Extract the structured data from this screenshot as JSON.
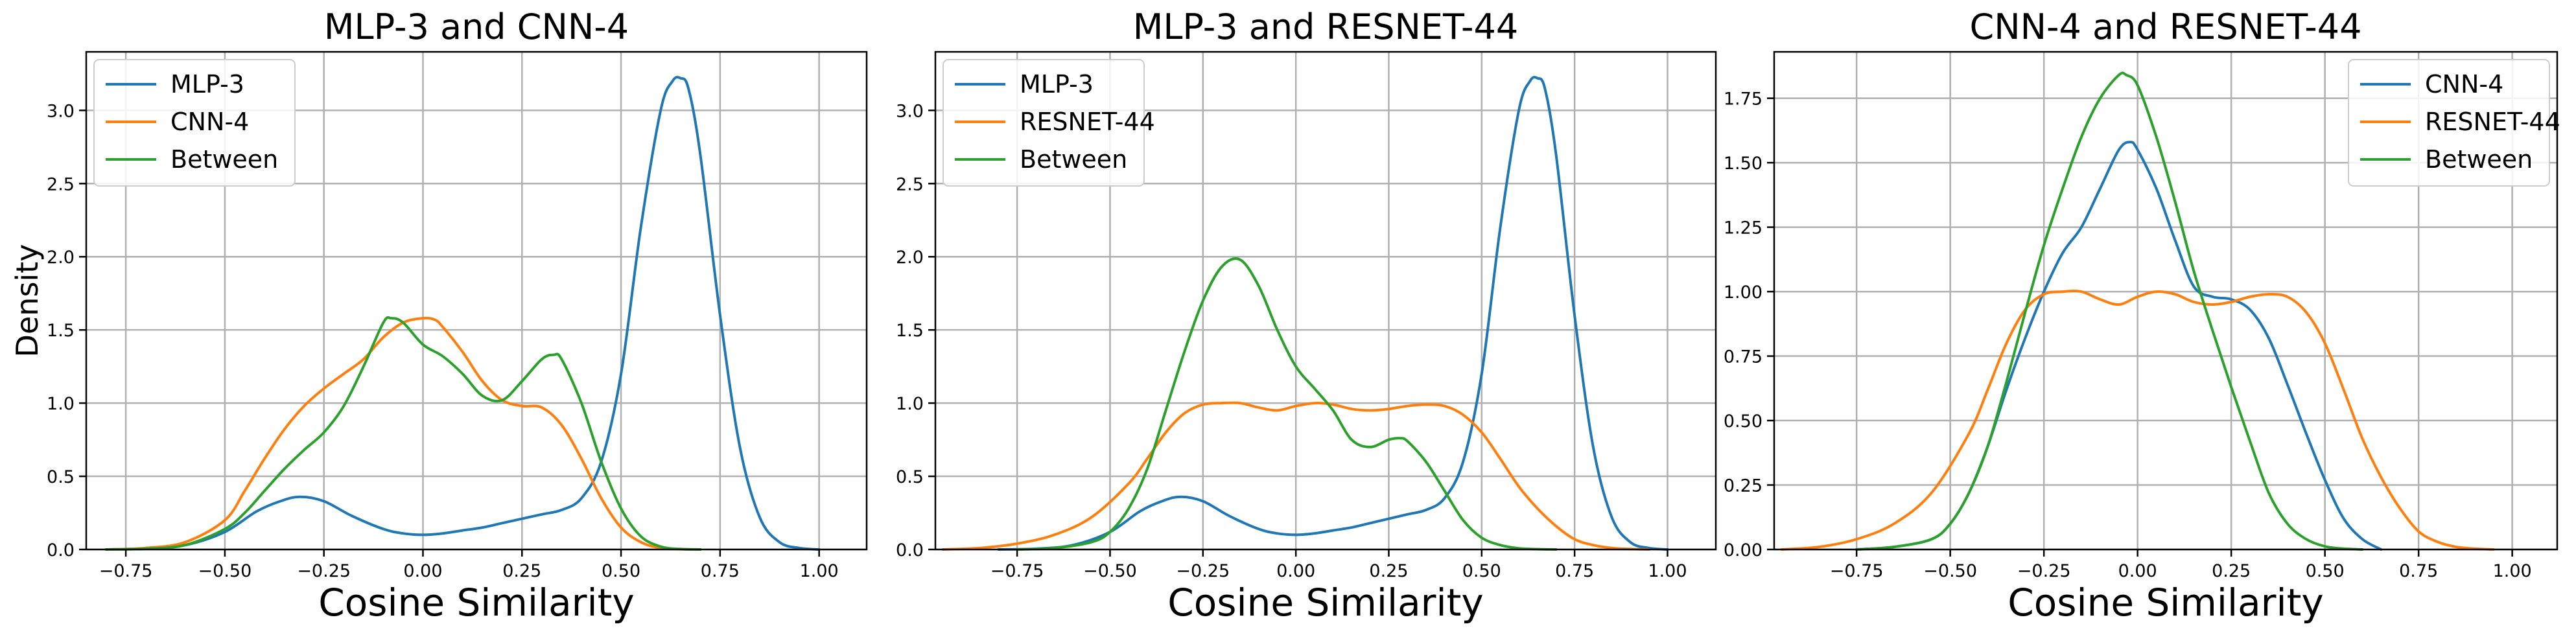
{
  "chart_data": [
    {
      "type": "line",
      "title": "MLP-3 and CNN-4",
      "xlabel": "Cosine Similarity",
      "ylabel": "Density",
      "xlim": [
        -0.85,
        1.12
      ],
      "ylim": [
        0,
        3.4
      ],
      "xticks": [
        -0.75,
        -0.5,
        -0.25,
        0.0,
        0.25,
        0.5,
        0.75,
        1.0
      ],
      "xtick_labels": [
        "−0.75",
        "−0.50",
        "−0.25",
        "0.00",
        "0.25",
        "0.50",
        "0.75",
        "1.00"
      ],
      "yticks": [
        0.0,
        0.5,
        1.0,
        1.5,
        2.0,
        2.5,
        3.0
      ],
      "ytick_labels": [
        "0.0",
        "0.5",
        "1.0",
        "1.5",
        "2.0",
        "2.5",
        "3.0"
      ],
      "grid": true,
      "legend_position": "top-left",
      "series": [
        {
          "name": "MLP-3",
          "color": "#1f77b4",
          "x": [
            -0.8,
            -0.7,
            -0.6,
            -0.5,
            -0.42,
            -0.36,
            -0.31,
            -0.25,
            -0.18,
            -0.1,
            -0.05,
            0.0,
            0.05,
            0.1,
            0.15,
            0.2,
            0.25,
            0.3,
            0.35,
            0.4,
            0.45,
            0.5,
            0.55,
            0.6,
            0.63,
            0.65,
            0.67,
            0.7,
            0.75,
            0.8,
            0.85,
            0.9,
            0.95,
            1.0
          ],
          "y": [
            0.0,
            0.005,
            0.03,
            0.12,
            0.26,
            0.33,
            0.36,
            0.33,
            0.23,
            0.14,
            0.11,
            0.1,
            0.11,
            0.13,
            0.15,
            0.18,
            0.21,
            0.24,
            0.27,
            0.35,
            0.6,
            1.2,
            2.2,
            3.0,
            3.2,
            3.22,
            3.15,
            2.7,
            1.6,
            0.7,
            0.22,
            0.05,
            0.01,
            0.0
          ]
        },
        {
          "name": "CNN-4",
          "color": "#ff7f0e",
          "x": [
            -0.8,
            -0.7,
            -0.6,
            -0.5,
            -0.45,
            -0.4,
            -0.35,
            -0.3,
            -0.25,
            -0.2,
            -0.15,
            -0.1,
            -0.05,
            0.0,
            0.03,
            0.05,
            0.1,
            0.15,
            0.2,
            0.25,
            0.3,
            0.35,
            0.4,
            0.45,
            0.5,
            0.55,
            0.6,
            0.65,
            0.7
          ],
          "y": [
            0.0,
            0.01,
            0.05,
            0.2,
            0.4,
            0.62,
            0.82,
            0.98,
            1.1,
            1.2,
            1.3,
            1.45,
            1.55,
            1.58,
            1.57,
            1.52,
            1.35,
            1.15,
            1.02,
            0.98,
            0.97,
            0.85,
            0.62,
            0.35,
            0.15,
            0.05,
            0.01,
            0.002,
            0.0
          ]
        },
        {
          "name": "Between",
          "color": "#2ca02c",
          "x": [
            -0.8,
            -0.7,
            -0.6,
            -0.5,
            -0.45,
            -0.4,
            -0.35,
            -0.3,
            -0.25,
            -0.2,
            -0.15,
            -0.1,
            -0.08,
            -0.05,
            0.0,
            0.05,
            0.1,
            0.15,
            0.2,
            0.25,
            0.3,
            0.33,
            0.35,
            0.4,
            0.45,
            0.5,
            0.55,
            0.6,
            0.65,
            0.7
          ],
          "y": [
            0.0,
            0.005,
            0.03,
            0.14,
            0.25,
            0.4,
            0.55,
            0.68,
            0.8,
            0.98,
            1.25,
            1.55,
            1.58,
            1.55,
            1.4,
            1.32,
            1.2,
            1.05,
            1.02,
            1.15,
            1.3,
            1.33,
            1.3,
            1.0,
            0.6,
            0.28,
            0.09,
            0.02,
            0.003,
            0.0
          ]
        }
      ]
    },
    {
      "type": "line",
      "title": "MLP-3 and RESNET-44",
      "xlabel": "Cosine Similarity",
      "ylabel": "",
      "xlim": [
        -0.97,
        1.13
      ],
      "ylim": [
        0,
        3.4
      ],
      "xticks": [
        -0.75,
        -0.5,
        -0.25,
        0.0,
        0.25,
        0.5,
        0.75,
        1.0
      ],
      "xtick_labels": [
        "−0.75",
        "−0.50",
        "−0.25",
        "0.00",
        "0.25",
        "0.50",
        "0.75",
        "1.00"
      ],
      "yticks": [
        0.0,
        0.5,
        1.0,
        1.5,
        2.0,
        2.5,
        3.0
      ],
      "ytick_labels": [
        "0.0",
        "0.5",
        "1.0",
        "1.5",
        "2.0",
        "2.5",
        "3.0"
      ],
      "grid": true,
      "legend_position": "top-left",
      "series": [
        {
          "name": "MLP-3",
          "color": "#1f77b4",
          "x": [
            -0.8,
            -0.7,
            -0.6,
            -0.5,
            -0.42,
            -0.36,
            -0.31,
            -0.25,
            -0.18,
            -0.1,
            -0.05,
            0.0,
            0.05,
            0.1,
            0.15,
            0.2,
            0.25,
            0.3,
            0.35,
            0.4,
            0.45,
            0.5,
            0.55,
            0.6,
            0.63,
            0.65,
            0.67,
            0.7,
            0.75,
            0.8,
            0.85,
            0.9,
            0.95,
            1.0
          ],
          "y": [
            0.0,
            0.005,
            0.03,
            0.12,
            0.26,
            0.33,
            0.36,
            0.33,
            0.23,
            0.14,
            0.11,
            0.1,
            0.11,
            0.13,
            0.15,
            0.18,
            0.21,
            0.24,
            0.27,
            0.35,
            0.6,
            1.2,
            2.2,
            3.0,
            3.2,
            3.22,
            3.15,
            2.7,
            1.6,
            0.7,
            0.22,
            0.05,
            0.01,
            0.0
          ]
        },
        {
          "name": "RESNET-44",
          "color": "#ff7f0e",
          "x": [
            -0.95,
            -0.85,
            -0.75,
            -0.65,
            -0.55,
            -0.45,
            -0.4,
            -0.35,
            -0.3,
            -0.25,
            -0.2,
            -0.15,
            -0.1,
            -0.05,
            0.0,
            0.05,
            0.1,
            0.15,
            0.2,
            0.25,
            0.3,
            0.35,
            0.4,
            0.45,
            0.5,
            0.55,
            0.6,
            0.65,
            0.7,
            0.75,
            0.8,
            0.85,
            0.9,
            0.95
          ],
          "y": [
            0.0,
            0.01,
            0.04,
            0.1,
            0.22,
            0.45,
            0.62,
            0.8,
            0.93,
            0.99,
            1.0,
            1.0,
            0.97,
            0.95,
            0.98,
            1.0,
            0.99,
            0.96,
            0.95,
            0.96,
            0.98,
            0.99,
            0.98,
            0.92,
            0.8,
            0.62,
            0.43,
            0.28,
            0.16,
            0.07,
            0.03,
            0.01,
            0.003,
            0.0
          ]
        },
        {
          "name": "Between",
          "color": "#2ca02c",
          "x": [
            -0.75,
            -0.65,
            -0.55,
            -0.5,
            -0.45,
            -0.4,
            -0.35,
            -0.3,
            -0.25,
            -0.2,
            -0.15,
            -0.1,
            -0.05,
            0.0,
            0.05,
            0.1,
            0.15,
            0.2,
            0.25,
            0.28,
            0.3,
            0.35,
            0.4,
            0.45,
            0.5,
            0.55,
            0.6,
            0.65,
            0.7
          ],
          "y": [
            0.0,
            0.01,
            0.05,
            0.12,
            0.28,
            0.55,
            0.95,
            1.35,
            1.7,
            1.93,
            1.98,
            1.8,
            1.5,
            1.25,
            1.1,
            0.95,
            0.75,
            0.7,
            0.75,
            0.76,
            0.74,
            0.6,
            0.4,
            0.2,
            0.08,
            0.03,
            0.008,
            0.002,
            0.0
          ]
        }
      ]
    },
    {
      "type": "line",
      "title": "CNN-4 and RESNET-44",
      "xlabel": "Cosine Similarity",
      "ylabel": "",
      "xlim": [
        -0.97,
        1.12
      ],
      "ylim": [
        0,
        1.93
      ],
      "xticks": [
        -0.75,
        -0.5,
        -0.25,
        0.0,
        0.25,
        0.5,
        0.75,
        1.0
      ],
      "xtick_labels": [
        "−0.75",
        "−0.50",
        "−0.25",
        "0.00",
        "0.25",
        "0.50",
        "0.75",
        "1.00"
      ],
      "yticks": [
        0.0,
        0.25,
        0.5,
        0.75,
        1.0,
        1.25,
        1.5,
        1.75
      ],
      "ytick_labels": [
        "0.00",
        "0.25",
        "0.50",
        "0.75",
        "1.00",
        "1.25",
        "1.50",
        "1.75"
      ],
      "grid": true,
      "legend_position": "top-right",
      "series": [
        {
          "name": "CNN-4",
          "color": "#1f77b4",
          "x": [
            -0.75,
            -0.65,
            -0.55,
            -0.5,
            -0.45,
            -0.4,
            -0.35,
            -0.3,
            -0.25,
            -0.2,
            -0.15,
            -0.1,
            -0.05,
            -0.02,
            0.0,
            0.05,
            0.1,
            0.15,
            0.2,
            0.25,
            0.3,
            0.35,
            0.4,
            0.45,
            0.5,
            0.55,
            0.6,
            0.65
          ],
          "y": [
            0.0,
            0.01,
            0.04,
            0.1,
            0.22,
            0.4,
            0.62,
            0.82,
            1.0,
            1.15,
            1.25,
            1.4,
            1.55,
            1.58,
            1.55,
            1.4,
            1.2,
            1.02,
            0.98,
            0.97,
            0.93,
            0.82,
            0.64,
            0.45,
            0.27,
            0.12,
            0.04,
            0.0
          ]
        },
        {
          "name": "RESNET-44",
          "color": "#ff7f0e",
          "x": [
            -0.95,
            -0.85,
            -0.75,
            -0.65,
            -0.55,
            -0.45,
            -0.4,
            -0.35,
            -0.3,
            -0.25,
            -0.2,
            -0.15,
            -0.1,
            -0.05,
            0.0,
            0.05,
            0.1,
            0.15,
            0.2,
            0.25,
            0.3,
            0.35,
            0.4,
            0.45,
            0.5,
            0.55,
            0.6,
            0.65,
            0.7,
            0.75,
            0.8,
            0.85,
            0.9,
            0.95
          ],
          "y": [
            0.0,
            0.01,
            0.04,
            0.1,
            0.22,
            0.45,
            0.62,
            0.8,
            0.93,
            0.99,
            1.0,
            1.0,
            0.97,
            0.95,
            0.98,
            1.0,
            0.99,
            0.96,
            0.95,
            0.96,
            0.98,
            0.99,
            0.98,
            0.92,
            0.8,
            0.62,
            0.43,
            0.28,
            0.16,
            0.07,
            0.03,
            0.01,
            0.003,
            0.0
          ]
        },
        {
          "name": "Between",
          "color": "#2ca02c",
          "x": [
            -0.75,
            -0.65,
            -0.55,
            -0.5,
            -0.45,
            -0.4,
            -0.35,
            -0.3,
            -0.25,
            -0.2,
            -0.15,
            -0.1,
            -0.05,
            -0.03,
            0.0,
            0.05,
            0.1,
            0.15,
            0.2,
            0.25,
            0.3,
            0.35,
            0.4,
            0.45,
            0.5,
            0.55,
            0.6
          ],
          "y": [
            0.0,
            0.01,
            0.04,
            0.1,
            0.22,
            0.4,
            0.65,
            0.92,
            1.18,
            1.4,
            1.6,
            1.75,
            1.84,
            1.84,
            1.8,
            1.6,
            1.35,
            1.08,
            0.85,
            0.63,
            0.42,
            0.22,
            0.1,
            0.04,
            0.012,
            0.003,
            0.0
          ]
        }
      ]
    }
  ]
}
